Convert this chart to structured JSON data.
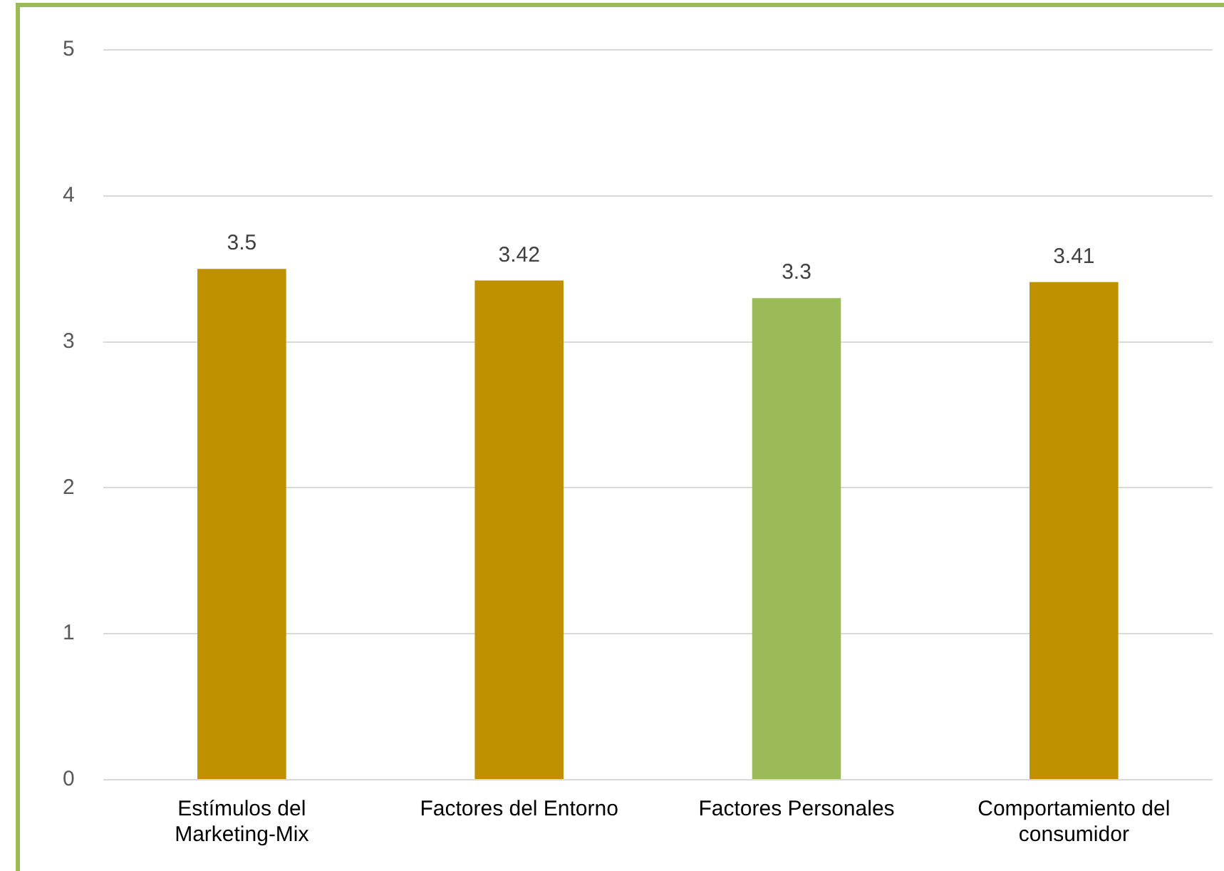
{
  "chart_data": {
    "type": "bar",
    "categories": [
      "Estímulos del Marketing-Mix",
      "Factores del Entorno",
      "Factores Personales",
      "Comportamiento del consumidor"
    ],
    "values": [
      3.5,
      3.42,
      3.3,
      3.41
    ],
    "colors": [
      "#bf9000",
      "#bf9000",
      "#9bbb59",
      "#bf9000"
    ],
    "ylim": [
      0,
      5
    ],
    "yticks": [
      0,
      1,
      2,
      3,
      4,
      5
    ],
    "grid": "y",
    "data_labels": true
  }
}
